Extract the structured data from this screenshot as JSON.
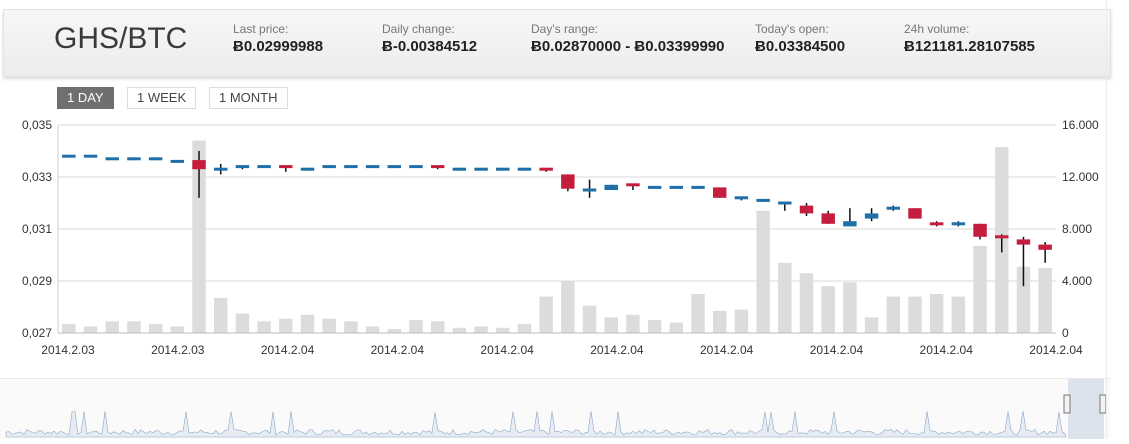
{
  "header": {
    "pair": "GHS/BTC",
    "stats": [
      {
        "label": "Last price:",
        "value": "Ƀ0.02999988"
      },
      {
        "label": "Daily change:",
        "value": "Ƀ-0.00384512"
      },
      {
        "label": "Day's range:",
        "value": "Ƀ0.02870000 - Ƀ0.03399990"
      },
      {
        "label": "Today's open:",
        "value": "Ƀ0.03384500"
      },
      {
        "label": "24h volume:",
        "value": "Ƀ121181.28107585"
      }
    ]
  },
  "range_tabs": [
    {
      "label": "1 DAY",
      "active": true
    },
    {
      "label": "1 WEEK",
      "active": false
    },
    {
      "label": "1 MONTH",
      "active": false
    }
  ],
  "colors": {
    "up": "#1f6fa8",
    "down": "#c41d3d",
    "volume": "#dcdcdc",
    "grid": "#d9d9d9",
    "axis_text": "#333333",
    "navigator_line": "#8ea8c8"
  },
  "chart_data": {
    "type": "candlestick",
    "y_left_ticks": [
      "0,035",
      "0,033",
      "0,031",
      "0,029",
      "0,027"
    ],
    "y_left_range": [
      0.027,
      0.035
    ],
    "y_right_ticks": [
      "16.000",
      "12.000",
      "8.000",
      "4.000",
      "0"
    ],
    "y_right_range": [
      0,
      16000
    ],
    "x_tick_labels": [
      "2014.2.03",
      "2014.2.03",
      "2014.2.04",
      "2014.2.04",
      "2014.2.04",
      "2014.2.04",
      "2014.2.04",
      "2014.2.04",
      "2014.2.04",
      "2014.2.04"
    ],
    "candles": [
      {
        "o": 0.0338,
        "h": 0.0338,
        "l": 0.0338,
        "c": 0.0338,
        "v": 700
      },
      {
        "o": 0.0338,
        "h": 0.0338,
        "l": 0.0338,
        "c": 0.0338,
        "v": 500
      },
      {
        "o": 0.0337,
        "h": 0.0337,
        "l": 0.0337,
        "c": 0.0337,
        "v": 900
      },
      {
        "o": 0.0337,
        "h": 0.0337,
        "l": 0.0337,
        "c": 0.0337,
        "v": 900
      },
      {
        "o": 0.0337,
        "h": 0.0337,
        "l": 0.0337,
        "c": 0.0337,
        "v": 700
      },
      {
        "o": 0.0336,
        "h": 0.0336,
        "l": 0.0336,
        "c": 0.0336,
        "v": 500
      },
      {
        "o": 0.03365,
        "h": 0.034,
        "l": 0.0322,
        "c": 0.0333,
        "v": 14800
      },
      {
        "o": 0.0332,
        "h": 0.0335,
        "l": 0.0331,
        "c": 0.0333,
        "v": 2700
      },
      {
        "o": 0.0334,
        "h": 0.0334,
        "l": 0.0333,
        "c": 0.0334,
        "v": 1500
      },
      {
        "o": 0.0334,
        "h": 0.0334,
        "l": 0.0334,
        "c": 0.0334,
        "v": 900
      },
      {
        "o": 0.0334,
        "h": 0.0334,
        "l": 0.0332,
        "c": 0.0333,
        "v": 1100
      },
      {
        "o": 0.0333,
        "h": 0.0333,
        "l": 0.0333,
        "c": 0.0333,
        "v": 1400
      },
      {
        "o": 0.0334,
        "h": 0.0334,
        "l": 0.0334,
        "c": 0.0334,
        "v": 1100
      },
      {
        "o": 0.0334,
        "h": 0.0334,
        "l": 0.0334,
        "c": 0.0334,
        "v": 900
      },
      {
        "o": 0.0334,
        "h": 0.0334,
        "l": 0.0334,
        "c": 0.0334,
        "v": 500
      },
      {
        "o": 0.0334,
        "h": 0.0334,
        "l": 0.0334,
        "c": 0.0334,
        "v": 300
      },
      {
        "o": 0.0334,
        "h": 0.0334,
        "l": 0.0334,
        "c": 0.0334,
        "v": 1000
      },
      {
        "o": 0.0334,
        "h": 0.0334,
        "l": 0.0333,
        "c": 0.0333,
        "v": 900
      },
      {
        "o": 0.0333,
        "h": 0.0333,
        "l": 0.0333,
        "c": 0.0333,
        "v": 400
      },
      {
        "o": 0.0333,
        "h": 0.0333,
        "l": 0.0333,
        "c": 0.0333,
        "v": 500
      },
      {
        "o": 0.0333,
        "h": 0.0333,
        "l": 0.0333,
        "c": 0.0333,
        "v": 400
      },
      {
        "o": 0.0333,
        "h": 0.0333,
        "l": 0.0333,
        "c": 0.0333,
        "v": 700
      },
      {
        "o": 0.0333,
        "h": 0.0333,
        "l": 0.0332,
        "c": 0.0332,
        "v": 2800
      },
      {
        "o": 0.0331,
        "h": 0.0331,
        "l": 0.03245,
        "c": 0.03255,
        "v": 4000
      },
      {
        "o": 0.0325,
        "h": 0.0329,
        "l": 0.0322,
        "c": 0.0325,
        "v": 2100
      },
      {
        "o": 0.0325,
        "h": 0.0327,
        "l": 0.0325,
        "c": 0.0327,
        "v": 1200
      },
      {
        "o": 0.0327,
        "h": 0.0327,
        "l": 0.0325,
        "c": 0.0326,
        "v": 1400
      },
      {
        "o": 0.0326,
        "h": 0.0326,
        "l": 0.0326,
        "c": 0.0326,
        "v": 1000
      },
      {
        "o": 0.0326,
        "h": 0.0326,
        "l": 0.0326,
        "c": 0.0326,
        "v": 800
      },
      {
        "o": 0.0326,
        "h": 0.0326,
        "l": 0.0326,
        "c": 0.0326,
        "v": 3000
      },
      {
        "o": 0.0326,
        "h": 0.0326,
        "l": 0.0322,
        "c": 0.0322,
        "v": 1700
      },
      {
        "o": 0.0321,
        "h": 0.0322,
        "l": 0.0321,
        "c": 0.0322,
        "v": 1800
      },
      {
        "o": 0.0321,
        "h": 0.0321,
        "l": 0.0321,
        "c": 0.0321,
        "v": 9400
      },
      {
        "o": 0.032,
        "h": 0.032,
        "l": 0.0317,
        "c": 0.032,
        "v": 5400
      },
      {
        "o": 0.0319,
        "h": 0.032,
        "l": 0.0315,
        "c": 0.0316,
        "v": 4600
      },
      {
        "o": 0.0316,
        "h": 0.0317,
        "l": 0.0312,
        "c": 0.0312,
        "v": 3600
      },
      {
        "o": 0.0311,
        "h": 0.0318,
        "l": 0.0311,
        "c": 0.0313,
        "v": 3900
      },
      {
        "o": 0.0314,
        "h": 0.0318,
        "l": 0.0313,
        "c": 0.0316,
        "v": 1200
      },
      {
        "o": 0.0317,
        "h": 0.0319,
        "l": 0.0317,
        "c": 0.0318,
        "v": 2800
      },
      {
        "o": 0.0318,
        "h": 0.0318,
        "l": 0.0314,
        "c": 0.0314,
        "v": 2800
      },
      {
        "o": 0.0312,
        "h": 0.0313,
        "l": 0.0311,
        "c": 0.0311,
        "v": 3000
      },
      {
        "o": 0.0311,
        "h": 0.0313,
        "l": 0.0311,
        "c": 0.0312,
        "v": 2800
      },
      {
        "o": 0.0312,
        "h": 0.0312,
        "l": 0.0306,
        "c": 0.0307,
        "v": 6700
      },
      {
        "o": 0.0307,
        "h": 0.0308,
        "l": 0.0301,
        "c": 0.0306,
        "v": 14300
      },
      {
        "o": 0.0306,
        "h": 0.0307,
        "l": 0.0288,
        "c": 0.0304,
        "v": 5100
      },
      {
        "o": 0.0304,
        "h": 0.0305,
        "l": 0.0297,
        "c": 0.0302,
        "v": 5000
      }
    ]
  }
}
